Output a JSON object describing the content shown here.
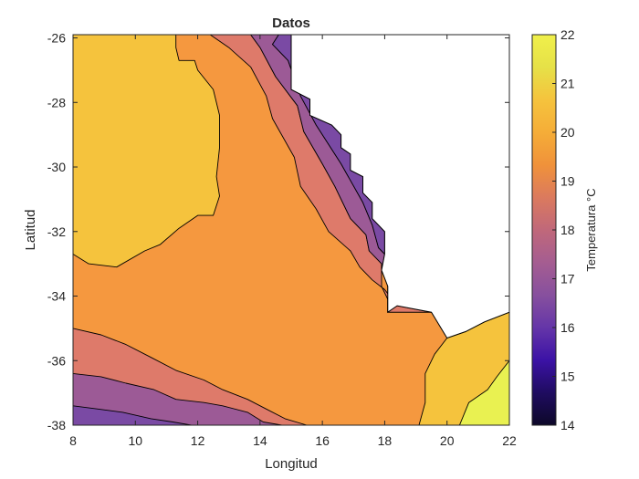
{
  "chart_data": {
    "type": "contour",
    "title": "Datos",
    "xlabel": "Longitud",
    "ylabel": "Latitud",
    "xlim": [
      8,
      22
    ],
    "ylim": [
      -38,
      -25.9
    ],
    "xticks": [
      8,
      10,
      12,
      14,
      16,
      18,
      20,
      22
    ],
    "yticks": [
      -38,
      -36,
      -34,
      -32,
      -30,
      -28,
      -26
    ],
    "colorbar": {
      "label": "Temperatura °C",
      "range": [
        14,
        22
      ],
      "ticks": [
        14,
        15,
        16,
        17,
        18,
        19,
        20,
        21,
        22
      ],
      "colors": [
        "#0d0829",
        "#1f0c60",
        "#3c12a6",
        "#6536a8",
        "#87509e",
        "#a55d91",
        "#c0687a",
        "#db7a5e",
        "#f0923a",
        "#f5ad38",
        "#f5c33d",
        "#e6e148",
        "#f0f04a"
      ]
    },
    "land_mask": {
      "description": "no data region",
      "color": "#ffffff"
    },
    "regions": [
      {
        "level": 17.5,
        "color": "#7a4aa4",
        "polygon": [
          [
            14.6,
            -25.9
          ],
          [
            14.4,
            -26.2
          ],
          [
            14.9,
            -26.7
          ],
          [
            15.3,
            -27.8
          ],
          [
            15.8,
            -28.7
          ],
          [
            16.6,
            -29.9
          ],
          [
            17.3,
            -31.1
          ],
          [
            17.6,
            -31.8
          ],
          [
            17.8,
            -32.5
          ],
          [
            18.0,
            -32.7
          ],
          [
            18.0,
            -32.0
          ],
          [
            17.6,
            -31.6
          ],
          [
            17.6,
            -31.1
          ],
          [
            17.3,
            -30.8
          ],
          [
            17.3,
            -30.3
          ],
          [
            16.9,
            -30.1
          ],
          [
            16.9,
            -29.6
          ],
          [
            16.6,
            -29.4
          ],
          [
            16.6,
            -29.0
          ],
          [
            16.3,
            -28.7
          ],
          [
            15.6,
            -28.4
          ],
          [
            15.6,
            -27.9
          ],
          [
            15.0,
            -27.6
          ],
          [
            15.0,
            -25.9
          ]
        ]
      },
      {
        "level": 18.5,
        "color": "#9c5a96",
        "polygon": [
          [
            13.7,
            -25.9
          ],
          [
            14.0,
            -26.3
          ],
          [
            14.5,
            -27.2
          ],
          [
            15.2,
            -28.1
          ],
          [
            15.4,
            -28.9
          ],
          [
            16.0,
            -29.9
          ],
          [
            16.4,
            -30.6
          ],
          [
            16.9,
            -31.6
          ],
          [
            17.4,
            -32.1
          ],
          [
            17.5,
            -32.6
          ],
          [
            17.9,
            -33.0
          ],
          [
            17.9,
            -33.2
          ],
          [
            18.0,
            -32.7
          ],
          [
            17.8,
            -32.5
          ],
          [
            17.6,
            -31.8
          ],
          [
            17.3,
            -31.1
          ],
          [
            16.6,
            -29.9
          ],
          [
            15.8,
            -28.7
          ],
          [
            15.3,
            -27.8
          ],
          [
            14.9,
            -26.7
          ],
          [
            14.4,
            -26.2
          ],
          [
            14.6,
            -25.9
          ]
        ]
      },
      {
        "level": 19.5,
        "color": "#de7a6a",
        "polygon": [
          [
            12.4,
            -25.9
          ],
          [
            13.0,
            -26.3
          ],
          [
            13.7,
            -26.9
          ],
          [
            14.2,
            -27.8
          ],
          [
            14.4,
            -28.5
          ],
          [
            15.1,
            -29.7
          ],
          [
            15.3,
            -30.6
          ],
          [
            15.8,
            -31.3
          ],
          [
            16.2,
            -32.0
          ],
          [
            16.9,
            -32.6
          ],
          [
            17.2,
            -33.1
          ],
          [
            17.6,
            -33.5
          ],
          [
            18.0,
            -33.8
          ],
          [
            18.4,
            -34.3
          ],
          [
            19.5,
            -34.5
          ],
          [
            18.1,
            -34.5
          ],
          [
            18.1,
            -34.1
          ],
          [
            17.9,
            -33.7
          ],
          [
            17.9,
            -33.2
          ],
          [
            17.9,
            -33.0
          ],
          [
            17.5,
            -32.6
          ],
          [
            17.4,
            -32.1
          ],
          [
            16.9,
            -31.6
          ],
          [
            16.4,
            -30.6
          ],
          [
            16.0,
            -29.9
          ],
          [
            15.4,
            -28.9
          ],
          [
            15.2,
            -28.1
          ],
          [
            14.5,
            -27.2
          ],
          [
            14.0,
            -26.3
          ],
          [
            13.7,
            -25.9
          ]
        ]
      },
      {
        "level": 20.5,
        "color": "#f5983f",
        "polygon": [
          [
            8.0,
            -25.9
          ],
          [
            8.0,
            -38.0
          ],
          [
            22.0,
            -38.0
          ],
          [
            22.0,
            -34.5
          ],
          [
            18.1,
            -34.5
          ],
          [
            18.1,
            -25.9
          ]
        ]
      },
      {
        "level": 21.5,
        "color": "#f5c33d",
        "polygon": [
          [
            8.0,
            -25.9
          ],
          [
            11.3,
            -25.9
          ],
          [
            11.3,
            -26.3
          ],
          [
            11.4,
            -26.7
          ],
          [
            11.9,
            -26.7
          ],
          [
            12.0,
            -27.0
          ],
          [
            12.5,
            -27.6
          ],
          [
            12.7,
            -28.4
          ],
          [
            12.7,
            -29.4
          ],
          [
            12.6,
            -30.3
          ],
          [
            12.7,
            -30.9
          ],
          [
            12.5,
            -31.5
          ],
          [
            12.0,
            -31.5
          ],
          [
            11.4,
            -31.9
          ],
          [
            10.8,
            -32.4
          ],
          [
            10.3,
            -32.6
          ],
          [
            9.4,
            -33.1
          ],
          [
            8.5,
            -33.0
          ],
          [
            8.0,
            -32.7
          ]
        ]
      },
      {
        "level": 21.5,
        "color": "#f5c33d",
        "polygon": [
          [
            22.0,
            -34.5
          ],
          [
            22.0,
            -38.0
          ],
          [
            19.1,
            -38.0
          ],
          [
            19.3,
            -37.3
          ],
          [
            19.3,
            -36.4
          ],
          [
            19.6,
            -35.8
          ],
          [
            20.0,
            -35.3
          ],
          [
            20.6,
            -35.1
          ],
          [
            21.2,
            -34.8
          ]
        ]
      },
      {
        "level": 22,
        "color": "#e9f151",
        "polygon": [
          [
            22.0,
            -36.0
          ],
          [
            22.0,
            -38.0
          ],
          [
            20.4,
            -38.0
          ],
          [
            20.7,
            -37.3
          ],
          [
            21.3,
            -36.9
          ],
          [
            21.6,
            -36.5
          ]
        ]
      },
      {
        "level": 19.5,
        "color": "#de7a6a",
        "polygon": [
          [
            8.0,
            -35.0
          ],
          [
            8.0,
            -38.0
          ],
          [
            15.5,
            -38.0
          ],
          [
            14.8,
            -37.8
          ],
          [
            14.2,
            -37.5
          ],
          [
            13.6,
            -37.2
          ],
          [
            12.8,
            -36.9
          ],
          [
            12.2,
            -36.6
          ],
          [
            11.3,
            -36.3
          ],
          [
            10.5,
            -35.9
          ],
          [
            9.7,
            -35.5
          ],
          [
            8.9,
            -35.2
          ]
        ]
      },
      {
        "level": 18.5,
        "color": "#9c5a96",
        "polygon": [
          [
            8.0,
            -36.4
          ],
          [
            8.0,
            -38.0
          ],
          [
            14.7,
            -38.0
          ],
          [
            14.1,
            -37.9
          ],
          [
            13.6,
            -37.6
          ],
          [
            12.8,
            -37.4
          ],
          [
            12.2,
            -37.3
          ],
          [
            11.3,
            -37.2
          ],
          [
            10.6,
            -36.9
          ],
          [
            9.7,
            -36.7
          ],
          [
            8.9,
            -36.5
          ]
        ]
      },
      {
        "level": 17.5,
        "color": "#7a4aa4",
        "polygon": [
          [
            8.0,
            -37.4
          ],
          [
            8.0,
            -38.0
          ],
          [
            11.8,
            -38.0
          ],
          [
            11.2,
            -37.9
          ],
          [
            10.5,
            -37.8
          ],
          [
            9.6,
            -37.6
          ],
          [
            8.8,
            -37.5
          ]
        ]
      }
    ],
    "mask_polygon": [
      [
        15.0,
        -25.9
      ],
      [
        22.0,
        -25.9
      ],
      [
        22.0,
        -34.5
      ],
      [
        21.2,
        -34.8
      ],
      [
        20.6,
        -35.1
      ],
      [
        20.0,
        -35.3
      ],
      [
        19.5,
        -34.5
      ],
      [
        18.4,
        -34.3
      ],
      [
        18.1,
        -34.5
      ],
      [
        18.1,
        -34.1
      ],
      [
        18.1,
        -33.7
      ],
      [
        17.9,
        -33.2
      ],
      [
        18.0,
        -32.7
      ],
      [
        18.0,
        -32.0
      ],
      [
        17.6,
        -31.6
      ],
      [
        17.6,
        -31.1
      ],
      [
        17.3,
        -30.8
      ],
      [
        17.3,
        -30.3
      ],
      [
        16.9,
        -30.1
      ],
      [
        16.9,
        -29.6
      ],
      [
        16.6,
        -29.4
      ],
      [
        16.6,
        -29.0
      ],
      [
        16.3,
        -28.7
      ],
      [
        15.6,
        -28.4
      ],
      [
        15.6,
        -27.9
      ],
      [
        15.0,
        -27.6
      ]
    ]
  }
}
